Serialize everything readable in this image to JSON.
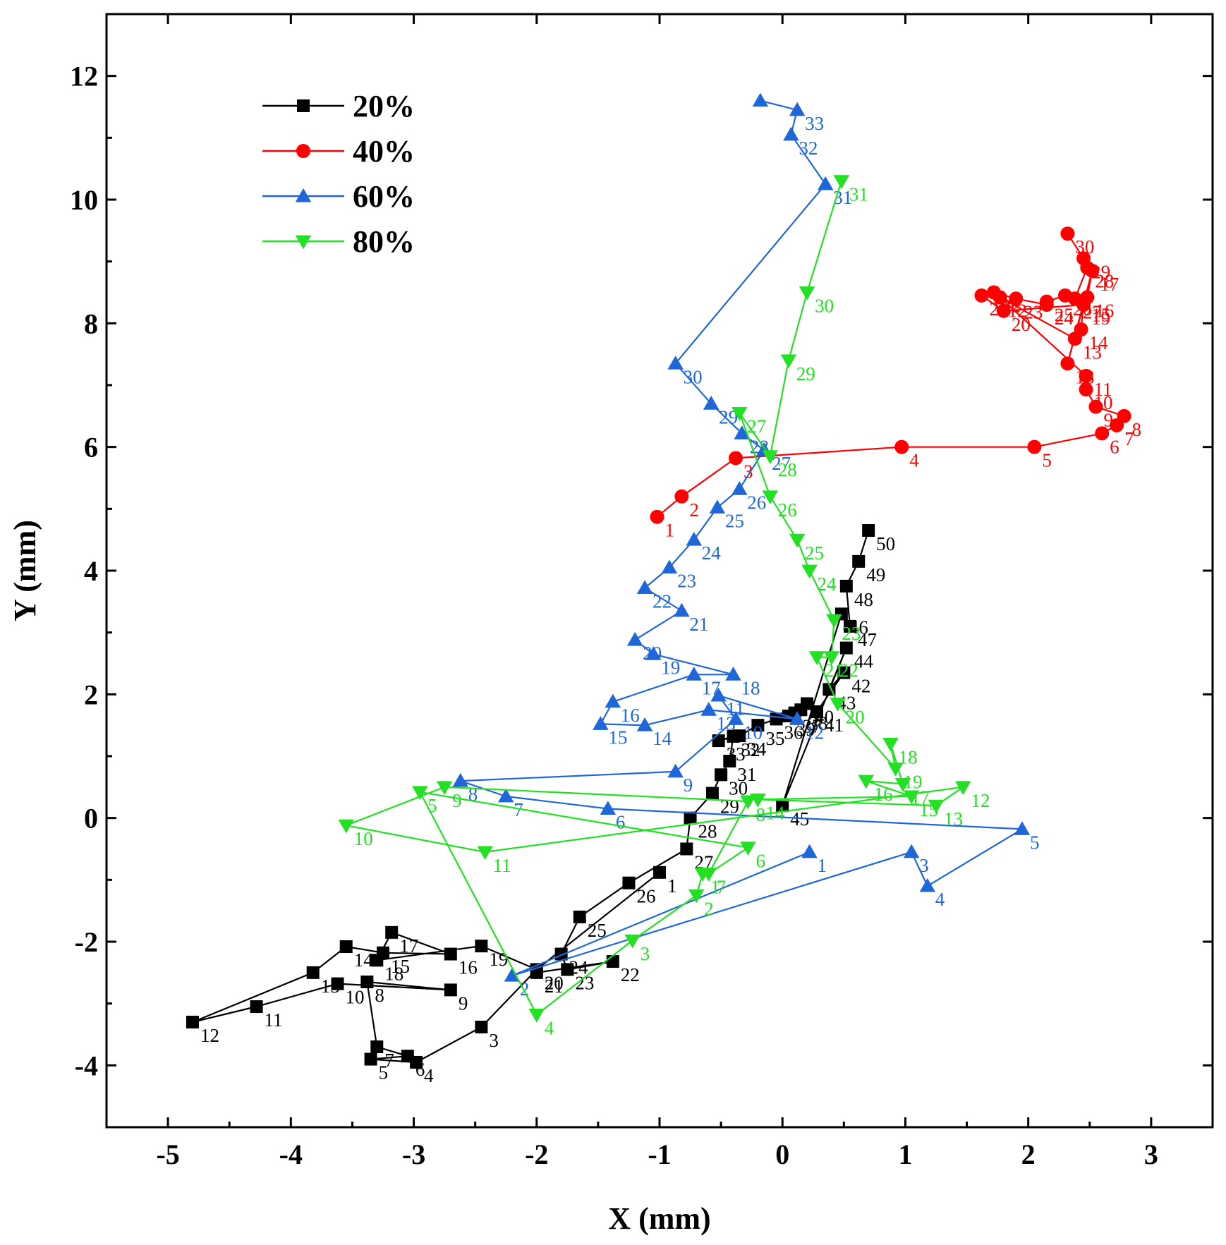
{
  "chart_data": {
    "type": "line",
    "title": "",
    "xlabel": "X (mm)",
    "ylabel": "Y (mm)",
    "xlim": [
      -5.5,
      3.5
    ],
    "ylim": [
      -5,
      13
    ],
    "xticks": [
      -5,
      -4,
      -3,
      -2,
      -1,
      0,
      1,
      2,
      3
    ],
    "yticks": [
      -4,
      -2,
      0,
      2,
      4,
      6,
      8,
      10,
      12
    ],
    "xtick_labels": [
      "-5",
      "-4",
      "-3",
      "-2",
      "-1",
      "0",
      "1",
      "2",
      "3"
    ],
    "ytick_labels": [
      "-4",
      "-2",
      "0",
      "2",
      "4",
      "6",
      "8",
      "10",
      "12"
    ],
    "legend_position": "top-left",
    "series": [
      {
        "name": "20%",
        "color": "#000000",
        "marker": "square",
        "x": [
          -1.0,
          -2.0,
          -2.45,
          -2.98,
          -3.35,
          -3.05,
          -3.3,
          -3.38,
          -2.7,
          -3.62,
          -4.28,
          -4.8,
          -3.82,
          -3.55,
          -3.25,
          -2.7,
          -3.18,
          -3.3,
          -2.45,
          -2.0,
          -2.0,
          -1.38,
          -1.75,
          -1.8,
          -1.65,
          -1.25,
          -0.78,
          -0.75,
          -0.57,
          -0.5,
          -0.43,
          -0.4,
          -0.52,
          -0.35,
          -0.2,
          -0.05,
          0.1,
          0.15,
          0.05,
          0.2,
          0.28,
          0.5,
          0.38,
          0.52,
          0.0,
          0.48,
          0.55,
          0.52,
          0.62,
          0.7
        ],
        "y": [
          -0.88,
          -2.45,
          -3.38,
          -3.95,
          -3.9,
          -3.85,
          -3.7,
          -2.65,
          -2.78,
          -2.68,
          -3.05,
          -3.3,
          -2.5,
          -2.08,
          -2.18,
          -2.2,
          -1.85,
          -2.3,
          -2.07,
          -2.45,
          -2.5,
          -2.32,
          -2.45,
          -2.2,
          -1.6,
          -1.05,
          -0.5,
          0.0,
          0.4,
          0.7,
          0.92,
          1.32,
          1.25,
          1.33,
          1.5,
          1.6,
          1.7,
          1.75,
          1.65,
          1.85,
          1.72,
          2.35,
          2.08,
          2.75,
          0.2,
          3.3,
          3.1,
          3.75,
          4.15,
          4.65
        ],
        "labels": [
          "1",
          "2",
          "3",
          "4",
          "5",
          "6",
          "7",
          "8",
          "9",
          "10",
          "11",
          "12",
          "13",
          "14",
          "15",
          "16",
          "17",
          "18",
          "19",
          "20",
          "21",
          "22",
          "23",
          "24",
          "25",
          "26",
          "27",
          "28",
          "29",
          "30",
          "31",
          "32",
          "33",
          "34",
          "35",
          "36",
          "37",
          "38",
          "39",
          "40",
          "41",
          "42",
          "43",
          "44",
          "45",
          "46",
          "47",
          "48",
          "49",
          "50"
        ]
      },
      {
        "name": "40%",
        "color": "#ff0000",
        "marker": "circle",
        "x": [
          -1.02,
          -0.82,
          -0.38,
          0.97,
          2.05,
          2.6,
          2.72,
          2.78,
          2.55,
          2.47,
          2.47,
          1.77,
          2.38,
          2.43,
          2.45,
          2.48,
          2.52,
          2.32,
          2.45,
          1.8,
          1.62,
          1.72,
          1.9,
          2.15,
          2.15,
          2.3,
          2.38,
          2.48,
          2.45,
          2.32
        ],
        "y": [
          4.87,
          5.2,
          5.82,
          6.0,
          6.0,
          6.22,
          6.35,
          6.5,
          6.65,
          6.93,
          7.15,
          8.42,
          7.75,
          7.9,
          8.35,
          8.42,
          8.85,
          7.35,
          8.3,
          8.2,
          8.45,
          8.5,
          8.4,
          8.3,
          8.35,
          8.45,
          8.4,
          8.9,
          9.05,
          9.45
        ],
        "labels": [
          "1",
          "2",
          "3",
          "4",
          "5",
          "6",
          "7",
          "8",
          "9",
          "10",
          "11",
          "12",
          "13",
          "14",
          "15",
          "16",
          "17",
          "18",
          "19",
          "20",
          "21",
          "22",
          "23",
          "24",
          "25",
          "26",
          "27",
          "28",
          "29",
          "30"
        ]
      },
      {
        "name": "60%",
        "color": "#1f67d9",
        "marker": "triangle-up",
        "x": [
          0.22,
          -2.2,
          1.05,
          1.18,
          1.95,
          -1.42,
          -2.25,
          -2.62,
          -0.87,
          -0.38,
          -0.52,
          0.12,
          -0.6,
          -1.12,
          -1.48,
          -1.38,
          -0.72,
          -0.4,
          -1.05,
          -1.2,
          -0.82,
          -1.12,
          -0.92,
          -0.72,
          -0.53,
          -0.35,
          -0.15,
          -0.33,
          -0.58,
          -0.87,
          0.35,
          0.07,
          0.12,
          -0.18
        ],
        "y": [
          -0.55,
          -2.55,
          -0.55,
          -1.1,
          -0.18,
          0.15,
          0.35,
          0.6,
          0.75,
          1.6,
          1.98,
          1.6,
          1.75,
          1.5,
          1.52,
          1.88,
          2.32,
          2.32,
          2.65,
          2.88,
          3.35,
          3.72,
          4.05,
          4.5,
          5.02,
          5.32,
          5.95,
          6.22,
          6.7,
          7.35,
          10.25,
          11.05,
          11.45,
          11.6
        ],
        "labels": [
          "1",
          "2",
          "3",
          "4",
          "5",
          "6",
          "7",
          "8",
          "9",
          "10",
          "11",
          "12",
          "13",
          "14",
          "15",
          "16",
          "17",
          "18",
          "19",
          "20",
          "21",
          "22",
          "23",
          "24",
          "25",
          "26",
          "27",
          "28",
          "29",
          "30",
          "31",
          "32",
          "33",
          ""
        ]
      },
      {
        "name": "80%",
        "color": "#22e022",
        "marker": "triangle-down",
        "x": [
          -0.65,
          -0.7,
          -1.22,
          -2.0,
          -2.95,
          -0.28,
          -0.6,
          -0.28,
          -2.75,
          -3.55,
          -2.42,
          1.47,
          1.25,
          -0.2,
          1.05,
          0.68,
          0.98,
          0.88,
          0.92,
          0.45,
          0.28,
          0.4,
          0.42,
          0.22,
          0.12,
          -0.1,
          -0.35,
          -0.1,
          0.05,
          0.2,
          0.48
        ],
        "y": [
          -0.9,
          -1.25,
          -1.98,
          -3.18,
          0.42,
          -0.48,
          -0.9,
          0.27,
          0.5,
          -0.12,
          -0.55,
          0.5,
          0.2,
          0.3,
          0.35,
          0.6,
          0.55,
          1.2,
          0.8,
          1.85,
          2.6,
          2.6,
          3.2,
          4.0,
          4.5,
          5.2,
          6.55,
          5.85,
          7.4,
          8.5,
          10.3
        ],
        "labels": [
          "1",
          "2",
          "3",
          "4",
          "5",
          "6",
          "7",
          "8",
          "9",
          "10",
          "11",
          "12",
          "13",
          "14",
          "15",
          "16",
          "17",
          "18",
          "19",
          "20",
          "21",
          "22",
          "23",
          "24",
          "25",
          "26",
          "27",
          "28",
          "29",
          "30",
          "31"
        ]
      }
    ]
  }
}
